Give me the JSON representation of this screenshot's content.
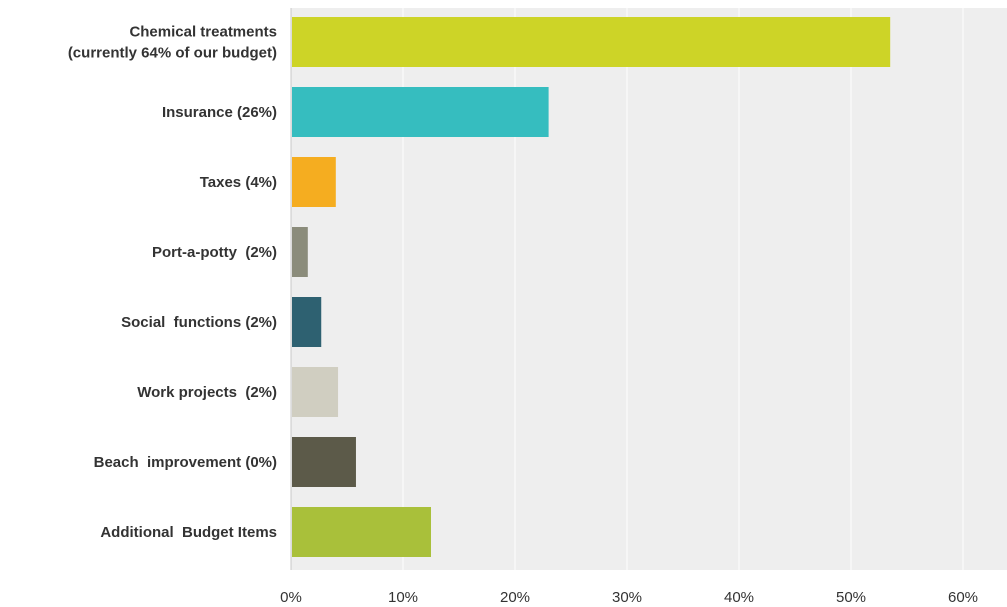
{
  "chart_data": {
    "type": "bar",
    "orientation": "horizontal",
    "categories": [
      [
        "Chemical treatments",
        "(currently 64% of our budget)"
      ],
      [
        "Insurance (26%)"
      ],
      [
        "Taxes (4%)"
      ],
      [
        "Port-a-potty  (2%)"
      ],
      [
        "Social  functions (2%)"
      ],
      [
        "Work projects  (2%)"
      ],
      [
        "Beach  improvement (0%)"
      ],
      [
        "Additional  Budget Items"
      ]
    ],
    "values": [
      53.5,
      23.0,
      4.0,
      1.5,
      2.7,
      4.2,
      5.8,
      12.5
    ],
    "colors": [
      "#cdd427",
      "#36bdbf",
      "#f5ad20",
      "#8b8c7b",
      "#2e6171",
      "#d0cec1",
      "#5c5a49",
      "#a9c03a"
    ],
    "xlim": [
      0,
      62
    ],
    "xticks": [
      0,
      10,
      20,
      30,
      40,
      50,
      60
    ],
    "xtick_labels": [
      "0%",
      "10%",
      "20%",
      "30%",
      "40%",
      "50%",
      "60%"
    ],
    "grid": true,
    "plot_background": "#eeeeee",
    "gridline_color": "#ffffff"
  }
}
